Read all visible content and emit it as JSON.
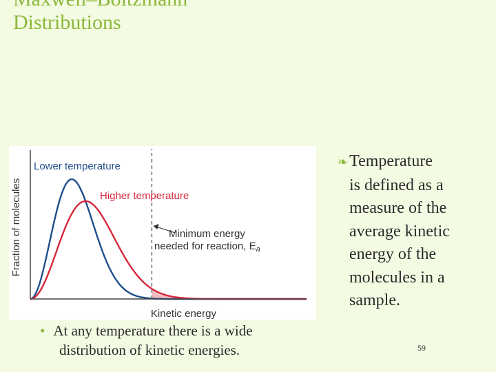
{
  "slide": {
    "title_line1": "Maxwell–Boltzmann",
    "title_line2": "Distributions",
    "side_text_lines": [
      "Temperature",
      "is defined as a",
      "measure of the",
      "average kinetic",
      "energy of the",
      "molecules in a",
      "sample."
    ],
    "bottom_bullet_lines": [
      "At any temperature there is a wide",
      "distribution of kinetic energies."
    ],
    "page_number": "59",
    "accent_color": "#8cb83a",
    "background_color": "#f3fbe2"
  },
  "chart_data": {
    "type": "line",
    "xlabel": "Kinetic energy",
    "ylabel": "Fraction of molecules",
    "series": [
      {
        "name": "Lower temperature",
        "color": "#1f4e8c",
        "peak_energy": 0.15,
        "peak_fraction": 0.82
      },
      {
        "name": "Higher temperature",
        "color": "#d6283b",
        "peak_energy": 0.2,
        "peak_fraction": 0.67
      }
    ],
    "threshold": {
      "label_line1": "Minimum energy",
      "label_line2": "needed for reaction, E",
      "label_subscript": "a",
      "energy": 0.44
    },
    "shaded_region": "energies above E_a under each curve",
    "grid": false
  }
}
